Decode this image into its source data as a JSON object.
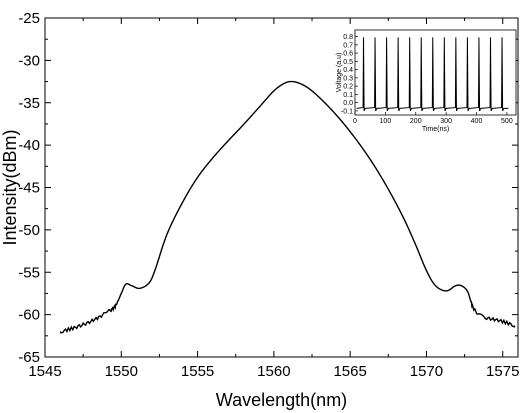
{
  "chart_data": [
    {
      "type": "line",
      "xlabel": "Wavelength(nm)",
      "ylabel": "Intensity(dBm)",
      "xlim": [
        1545,
        1576
      ],
      "ylim": [
        -65,
        -25
      ],
      "xticks": [
        1545,
        1550,
        1555,
        1560,
        1565,
        1570,
        1575
      ],
      "yticks": [
        -65,
        -60,
        -55,
        -50,
        -45,
        -40,
        -35,
        -30,
        -25
      ],
      "grid": false,
      "series": [
        {
          "color": "#000000",
          "points": [
            [
              1546.0,
              -62.0
            ],
            [
              1547.0,
              -61.5
            ],
            [
              1548.0,
              -60.8
            ],
            [
              1549.0,
              -59.8
            ],
            [
              1549.6,
              -59.0
            ],
            [
              1550.0,
              -57.5
            ],
            [
              1550.3,
              -56.4
            ],
            [
              1550.7,
              -56.6
            ],
            [
              1551.2,
              -56.9
            ],
            [
              1551.8,
              -56.3
            ],
            [
              1552.2,
              -54.8
            ],
            [
              1553.0,
              -50.5
            ],
            [
              1554.0,
              -46.8
            ],
            [
              1555.0,
              -43.8
            ],
            [
              1556.0,
              -41.5
            ],
            [
              1557.0,
              -39.5
            ],
            [
              1558.0,
              -37.6
            ],
            [
              1559.0,
              -35.6
            ],
            [
              1560.0,
              -33.6
            ],
            [
              1560.7,
              -32.7
            ],
            [
              1561.2,
              -32.5
            ],
            [
              1561.8,
              -32.8
            ],
            [
              1562.5,
              -33.6
            ],
            [
              1563.5,
              -35.3
            ],
            [
              1564.5,
              -37.3
            ],
            [
              1565.5,
              -39.6
            ],
            [
              1566.5,
              -42.2
            ],
            [
              1567.5,
              -45.2
            ],
            [
              1568.5,
              -48.6
            ],
            [
              1569.3,
              -51.8
            ],
            [
              1570.0,
              -54.8
            ],
            [
              1570.6,
              -56.6
            ],
            [
              1571.3,
              -57.2
            ],
            [
              1571.9,
              -56.6
            ],
            [
              1572.3,
              -56.6
            ],
            [
              1572.7,
              -57.3
            ],
            [
              1573.1,
              -59.3
            ],
            [
              1573.8,
              -60.3
            ],
            [
              1574.8,
              -60.7
            ],
            [
              1575.8,
              -61.3
            ]
          ]
        }
      ]
    },
    {
      "type": "line",
      "xlabel": "Time(ns)",
      "ylabel": "Voltage (a.u)",
      "xlim": [
        0,
        530
      ],
      "ylim": [
        -0.15,
        0.88
      ],
      "xticks": [
        0,
        100,
        200,
        300,
        400,
        500
      ],
      "yticks": [
        -0.1,
        0.0,
        0.1,
        0.2,
        0.3,
        0.4,
        0.5,
        0.6,
        0.7,
        0.8
      ],
      "ytick_labels": [
        "-0.1",
        "0.0",
        "0.1",
        "0.2",
        "0.3",
        "0.4",
        "0.5",
        "0.6",
        "0.7",
        "0.8"
      ],
      "grid": false,
      "pulse_times": [
        28,
        66,
        104,
        142,
        180,
        218,
        256,
        294,
        332,
        370,
        408,
        446,
        484
      ],
      "pulse_peak": 0.79,
      "baseline": -0.07
    }
  ]
}
